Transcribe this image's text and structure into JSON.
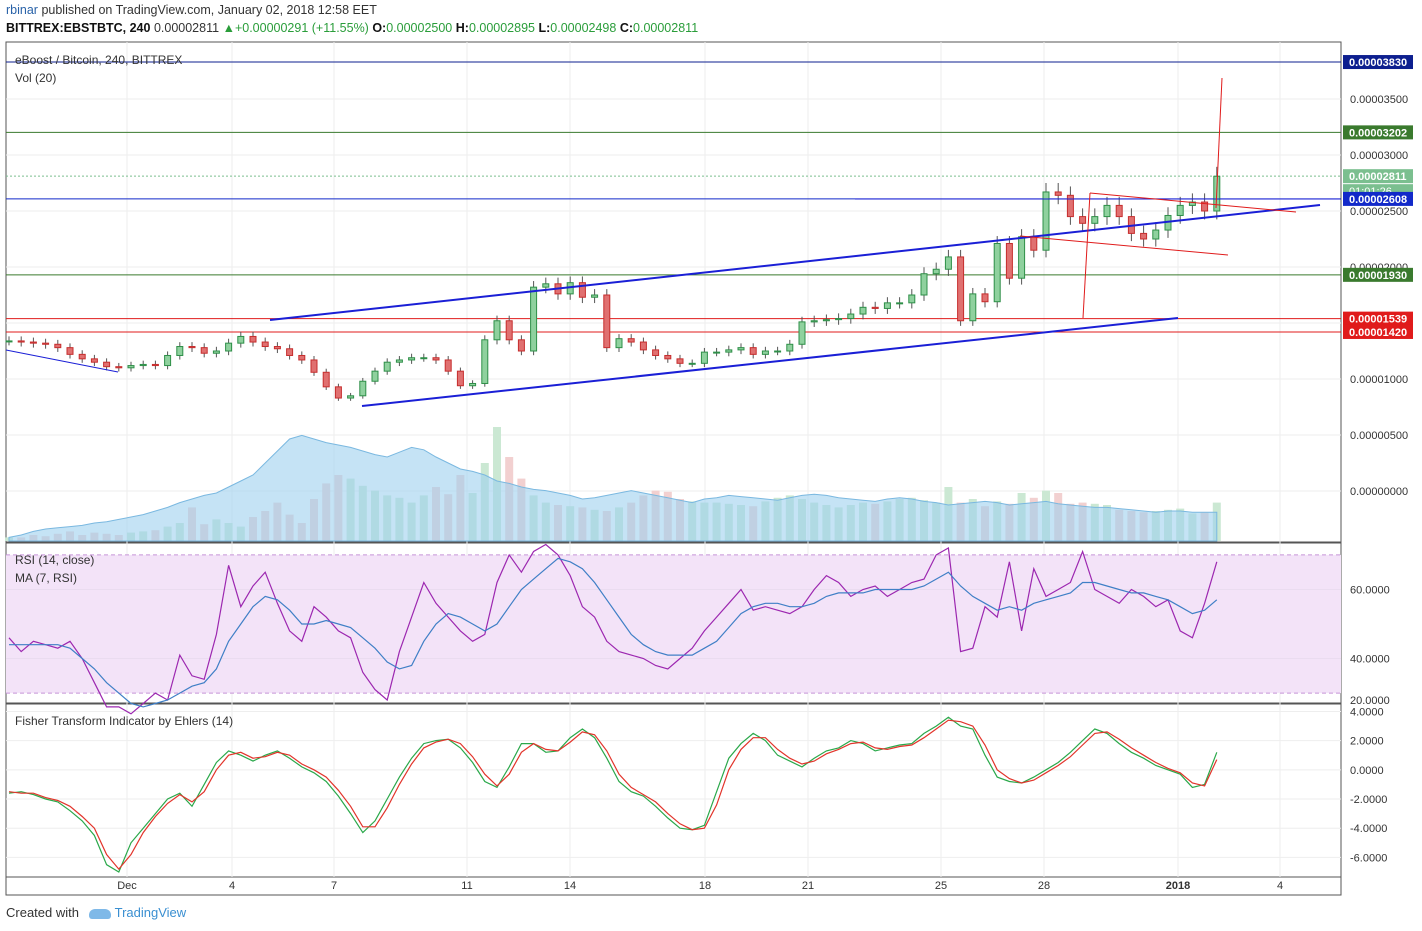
{
  "header": {
    "user": "rbinar",
    "published": "published on TradingView.com, January 02, 2018 12:58 EET",
    "symbol": "BITTREX:EBSTBTC, 240",
    "last": "0.00002811",
    "change": "+0.00000291 (+11.55%)",
    "o_label": "O:",
    "o": "0.00002500",
    "h_label": "H:",
    "h": "0.00002895",
    "l_label": "L:",
    "l": "0.00002498",
    "c_label": "C:",
    "c": "0.00002811"
  },
  "footer": {
    "created_with": "Created with",
    "brand": "TradingView"
  },
  "chart_data": [
    {
      "type": "candlestick",
      "title": "eBoost / Bitcoin, 240, BITTREX",
      "volume_label": "Vol (20)",
      "y_ticks": [
        3.5e-05,
        3e-05,
        2.5e-05,
        2e-05,
        1.5e-05,
        1e-05,
        5e-06,
        0
      ],
      "y_tick_labels": [
        "0.00003500",
        "0.00003000",
        "0.00002500",
        "0.00002000",
        "0.00001500",
        "0.00001000",
        "0.00000500",
        "0.00000000"
      ],
      "x_tick_labels": [
        "Dec",
        "4",
        "7",
        "11",
        "14",
        "18",
        "21",
        "25",
        "28",
        "2018",
        "4"
      ],
      "price_tags": [
        {
          "value": 3.83e-05,
          "label": "0.00003830",
          "color": "#0d1f8f"
        },
        {
          "value": 3.202e-05,
          "label": "0.00003202",
          "color": "#3a7a2e"
        },
        {
          "value": 2.811e-05,
          "label": "0.00002811",
          "color": "#7bbf8f"
        },
        {
          "value": 2.608e-05,
          "label": "0.00002608",
          "color": "#1229c9"
        },
        {
          "value": 1.93e-05,
          "label": "0.00001930",
          "color": "#3a7a2e"
        },
        {
          "value": 1.539e-05,
          "label": "0.00001539",
          "color": "#e01b1b"
        },
        {
          "value": 1.42e-05,
          "label": "0.00001420",
          "color": "#e01b1b"
        }
      ],
      "countdown": "01:01:26",
      "candles_approx": [
        1.34e-05,
        1.33e-05,
        1.32e-05,
        1.31e-05,
        1.28e-05,
        1.22e-05,
        1.18e-05,
        1.15e-05,
        1.11e-05,
        1.1e-05,
        1.12e-05,
        1.13e-05,
        1.12e-05,
        1.21e-05,
        1.29e-05,
        1.28e-05,
        1.23e-05,
        1.25e-05,
        1.32e-05,
        1.38e-05,
        1.33e-05,
        1.29e-05,
        1.27e-05,
        1.21e-05,
        1.17e-05,
        1.06e-05,
        9.3e-06,
        8.3e-06,
        8.5e-06,
        9.8e-06,
        1.07e-05,
        1.15e-05,
        1.17e-05,
        1.19e-05,
        1.19e-05,
        1.17e-05,
        1.07e-05,
        9.4e-06,
        9.6e-06,
        1.35e-05,
        1.52e-05,
        1.35e-05,
        1.25e-05,
        1.82e-05,
        1.85e-05,
        1.76e-05,
        1.86e-05,
        1.73e-05,
        1.75e-05,
        1.28e-05,
        1.36e-05,
        1.33e-05,
        1.26e-05,
        1.21e-05,
        1.18e-05,
        1.14e-05,
        1.14e-05,
        1.24e-05,
        1.24e-05,
        1.26e-05,
        1.28e-05,
        1.22e-05,
        1.25e-05,
        1.25e-05,
        1.31e-05,
        1.51e-05,
        1.52e-05,
        1.53e-05,
        1.54e-05,
        1.58e-05,
        1.64e-05,
        1.63e-05,
        1.68e-05,
        1.68e-05,
        1.75e-05,
        1.94e-05,
        1.98e-05,
        2.09e-05,
        1.52e-05,
        1.76e-05,
        1.69e-05,
        2.21e-05,
        1.9e-05,
        2.27e-05,
        2.15e-05,
        2.67e-05,
        2.64e-05,
        2.45e-05,
        2.39e-05,
        2.45e-05,
        2.55e-05,
        2.45e-05,
        2.3e-05,
        2.25e-05,
        2.33e-05,
        2.46e-05,
        2.55e-05,
        2.58e-05,
        2.5e-05,
        2.81e-05
      ],
      "volume_approx": [
        0.3,
        0.3,
        0.5,
        0.4,
        0.6,
        0.8,
        0.5,
        0.7,
        0.6,
        0.5,
        0.7,
        0.8,
        0.9,
        1.2,
        1.5,
        2.8,
        1.4,
        1.8,
        1.5,
        1.2,
        2.0,
        2.5,
        3.2,
        2.2,
        1.5,
        3.5,
        4.8,
        5.5,
        5.2,
        4.6,
        4.2,
        3.8,
        3.6,
        3.2,
        3.8,
        4.5,
        3.9,
        5.5,
        4.0,
        6.5,
        9.5,
        7.0,
        5.2,
        3.8,
        3.2,
        3.0,
        2.9,
        2.8,
        2.6,
        2.5,
        2.8,
        3.2,
        3.8,
        4.2,
        4.1,
        3.5,
        3.3,
        3.2,
        3.2,
        3.1,
        3.0,
        2.9,
        3.3,
        3.6,
        3.8,
        3.5,
        3.2,
        3.0,
        2.8,
        3.0,
        3.2,
        3.1,
        3.3,
        3.5,
        3.6,
        3.4,
        3.2,
        4.5,
        3.2,
        3.5,
        2.9,
        3.3,
        3.1,
        4.0,
        3.6,
        4.2,
        4.0,
        3.1,
        3.2,
        3.1,
        3.0,
        2.6,
        2.5,
        2.4,
        2.5,
        2.6,
        2.7,
        2.3,
        2.4,
        3.2
      ],
      "volume_ma_approx": [
        0.3,
        0.5,
        0.8,
        1.0,
        1.1,
        1.2,
        1.3,
        1.5,
        1.6,
        1.8,
        2.0,
        2.2,
        2.5,
        2.8,
        3.2,
        3.5,
        3.8,
        4.0,
        4.5,
        5.0,
        5.5,
        6.5,
        7.5,
        8.5,
        8.8,
        8.5,
        8.2,
        8.0,
        7.8,
        7.5,
        7.2,
        7.0,
        7.4,
        7.8,
        7.6,
        7.0,
        6.5,
        6.0,
        5.8,
        5.5,
        5.0,
        4.8,
        4.5,
        4.3,
        4.2,
        4.0,
        3.8,
        3.5,
        3.6,
        3.8,
        4.0,
        4.2,
        4.0,
        3.8,
        3.6,
        3.4,
        3.2,
        3.5,
        3.6,
        3.8,
        3.7,
        3.6,
        3.5,
        3.4,
        3.6,
        3.8,
        3.9,
        3.8,
        3.6,
        3.5,
        3.4,
        3.3,
        3.5,
        3.6,
        3.5,
        3.3,
        3.2,
        3.0,
        3.1,
        3.2,
        3.3,
        3.2,
        3.0,
        3.1,
        3.2,
        3.3,
        3.1,
        3.0,
        2.9,
        2.8,
        2.8,
        2.7,
        2.6,
        2.5,
        2.4,
        2.5,
        2.5,
        2.4,
        2.4,
        2.4
      ]
    },
    {
      "type": "line",
      "title": "RSI (14, close)",
      "ma_label": "MA (7, RSI)",
      "ylim": [
        28,
        72
      ],
      "y_tick_labels": [
        "60.0000",
        "40.0000",
        "20.0000"
      ],
      "y_ticks": [
        60,
        40,
        20
      ],
      "bands": [
        70,
        30
      ],
      "series": [
        {
          "values": [
            46,
            42,
            45,
            44,
            43,
            45,
            40,
            33,
            26,
            26,
            24,
            27,
            30,
            28,
            41,
            35,
            34,
            47,
            67,
            55,
            61,
            65,
            56,
            48,
            45,
            55,
            52,
            48,
            46,
            36,
            31,
            28,
            42,
            52,
            62,
            56,
            52,
            48,
            45,
            47,
            62,
            70,
            65,
            71,
            73,
            70,
            64,
            55,
            52,
            45,
            42,
            41,
            40,
            38,
            37,
            40,
            43,
            48,
            52,
            56,
            60,
            54,
            55,
            54,
            53,
            55,
            60,
            64,
            62,
            58,
            60,
            61,
            58,
            60,
            62,
            63,
            70,
            72,
            42,
            43,
            55,
            52,
            68,
            48,
            66,
            58,
            60,
            62,
            71,
            60,
            58,
            56,
            60,
            58,
            55,
            57,
            48,
            46,
            56,
            68
          ]
        },
        {
          "values": [
            44,
            44,
            44,
            44,
            44,
            43,
            40,
            37,
            33,
            30,
            27,
            26,
            27,
            28,
            30,
            32,
            33,
            37,
            45,
            50,
            55,
            58,
            57,
            54,
            50,
            50,
            51,
            50,
            49,
            46,
            43,
            39,
            37,
            38,
            45,
            50,
            53,
            52,
            50,
            48,
            50,
            55,
            60,
            63,
            66,
            69,
            68,
            66,
            62,
            57,
            52,
            47,
            44,
            42,
            41,
            41,
            41,
            43,
            45,
            49,
            53,
            55,
            56,
            56,
            55,
            55,
            56,
            58,
            59,
            59,
            59,
            60,
            60,
            60,
            60,
            61,
            63,
            65,
            61,
            58,
            56,
            54,
            55,
            54,
            56,
            57,
            58,
            59,
            62,
            62,
            61,
            60,
            59,
            59,
            58,
            57,
            55,
            53,
            54,
            57
          ]
        }
      ]
    },
    {
      "type": "line",
      "title": "Fisher Transform Indicator by Ehlers (14)",
      "ylim": [
        -7,
        4.1
      ],
      "y_tick_labels": [
        "4.0000",
        "2.0000",
        "0.0000",
        "-2.0000",
        "-4.0000",
        "-6.0000"
      ],
      "y_ticks": [
        4,
        2,
        0,
        -2,
        -4,
        -6
      ],
      "series": [
        {
          "values": [
            -1.6,
            -1.5,
            -1.7,
            -2.0,
            -2.2,
            -2.8,
            -3.5,
            -4.5,
            -6.5,
            -7.0,
            -5.0,
            -4.0,
            -3.0,
            -2.0,
            -1.6,
            -2.5,
            -1.0,
            0.5,
            1.3,
            1.0,
            0.6,
            1.0,
            1.3,
            0.8,
            0.2,
            -0.2,
            -0.8,
            -1.8,
            -3.0,
            -4.3,
            -3.5,
            -2.0,
            -0.5,
            0.8,
            1.8,
            2.0,
            2.1,
            1.5,
            0.5,
            -0.8,
            -1.2,
            0.2,
            1.8,
            1.8,
            1.2,
            1.3,
            2.2,
            2.8,
            2.2,
            0.8,
            -0.8,
            -1.5,
            -1.8,
            -2.5,
            -3.3,
            -4.0,
            -4.1,
            -3.8,
            -1.5,
            0.8,
            1.8,
            2.5,
            2.0,
            1.0,
            0.6,
            0.2,
            0.8,
            1.3,
            1.5,
            2.0,
            1.8,
            1.3,
            1.5,
            1.7,
            1.8,
            2.5,
            3.0,
            3.6,
            3.0,
            2.8,
            1.0,
            -0.5,
            -0.8,
            -0.9,
            -0.5,
            0.0,
            0.5,
            1.2,
            2.0,
            2.8,
            2.5,
            1.8,
            1.2,
            0.8,
            0.3,
            0.0,
            -0.3,
            -1.2,
            -1.0,
            1.2
          ]
        },
        {
          "values": [
            -1.5,
            -1.6,
            -1.6,
            -1.9,
            -2.1,
            -2.5,
            -3.2,
            -4.0,
            -5.8,
            -6.8,
            -5.8,
            -4.3,
            -3.2,
            -2.3,
            -1.7,
            -2.2,
            -1.5,
            0.0,
            1.0,
            1.2,
            0.8,
            0.9,
            1.2,
            1.0,
            0.4,
            0.0,
            -0.5,
            -1.4,
            -2.5,
            -3.9,
            -3.9,
            -2.6,
            -1.0,
            0.4,
            1.5,
            1.9,
            2.1,
            1.8,
            0.9,
            -0.3,
            -1.1,
            -0.3,
            1.2,
            1.8,
            1.4,
            1.3,
            1.9,
            2.6,
            2.4,
            1.3,
            -0.3,
            -1.2,
            -1.7,
            -2.2,
            -3.0,
            -3.7,
            -4.1,
            -4.0,
            -2.4,
            0.0,
            1.4,
            2.2,
            2.2,
            1.4,
            0.8,
            0.4,
            0.6,
            1.1,
            1.4,
            1.8,
            1.9,
            1.5,
            1.4,
            1.6,
            1.7,
            2.2,
            2.8,
            3.4,
            3.3,
            3.0,
            1.7,
            0.0,
            -0.6,
            -0.9,
            -0.7,
            -0.2,
            0.3,
            0.9,
            1.7,
            2.5,
            2.6,
            2.1,
            1.5,
            1.0,
            0.5,
            0.1,
            -0.2,
            -0.9,
            -1.1,
            0.7
          ]
        }
      ]
    }
  ]
}
